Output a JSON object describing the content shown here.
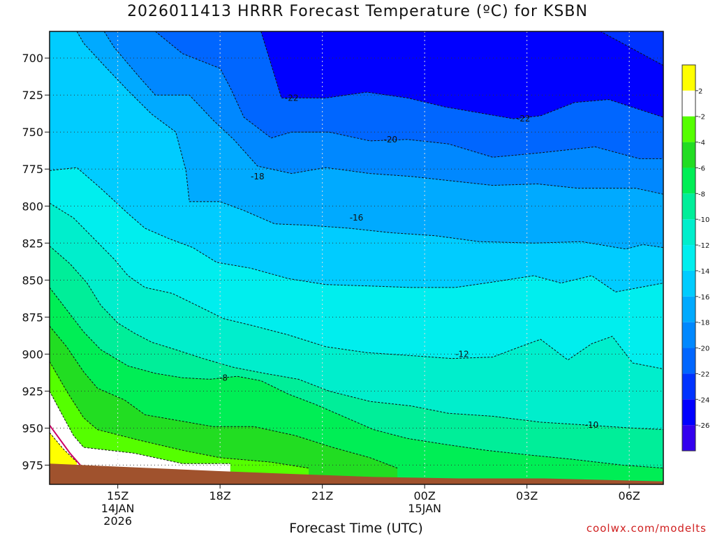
{
  "title": "2026011413 HRRR Forecast Temperature (ºC) for KSBN",
  "credit": "coolwx.com/modelts",
  "chart_data": {
    "type": "contour",
    "title": "2026011413 HRRR Forecast Temperature (ºC) for KSBN",
    "xlabel": "Forecast Time (UTC)",
    "ylabel": "",
    "x_ticks": [
      {
        "hour": 15,
        "label": [
          "15Z",
          "14JAN",
          "2026"
        ]
      },
      {
        "hour": 18,
        "label": [
          "18Z"
        ]
      },
      {
        "hour": 21,
        "label": [
          "21Z"
        ]
      },
      {
        "hour": 24,
        "label": [
          "00Z",
          "15JAN"
        ]
      },
      {
        "hour": 27,
        "label": [
          "03Z"
        ]
      },
      {
        "hour": 30,
        "label": [
          "06Z"
        ]
      }
    ],
    "xlim": [
      13,
      31
    ],
    "y_ticks": [
      700,
      725,
      750,
      775,
      800,
      825,
      850,
      875,
      900,
      925,
      950,
      975
    ],
    "ylim": [
      988,
      682
    ],
    "grid": true,
    "colorbar_levels": [
      2,
      -2,
      -4,
      -6,
      -8,
      -10,
      -12,
      -14,
      -16,
      -18,
      -20,
      -22,
      -24,
      -26
    ],
    "colorbar_colors": [
      "#ffff00",
      "#ffffff",
      "#55ff00",
      "#22dd22",
      "#00ee55",
      "#00ee99",
      "#00eecc",
      "#00eeee",
      "#00ccff",
      "#00aaff",
      "#0088ff",
      "#0066ff",
      "#0033ff",
      "#0000ff",
      "#3300ee"
    ],
    "contour_labels": [
      {
        "value": "-22",
        "hour": 20.1,
        "pres": 727
      },
      {
        "value": "-22",
        "hour": 26.9,
        "pres": 741
      },
      {
        "value": "-20",
        "hour": 23.0,
        "pres": 755
      },
      {
        "value": "-18",
        "hour": 19.1,
        "pres": 780
      },
      {
        "value": "-16",
        "hour": 22.0,
        "pres": 808
      },
      {
        "value": "-12",
        "hour": 25.1,
        "pres": 900
      },
      {
        "value": "-8",
        "hour": 18.1,
        "pres": 916
      },
      {
        "value": "-10",
        "hour": 28.9,
        "pres": 948
      }
    ],
    "isotherms": [
      {
        "level": -24,
        "points": [
          [
            13.3,
            682
          ],
          [
            29.0,
            680
          ],
          [
            31,
            705
          ],
          [
            31,
            682
          ]
        ]
      },
      {
        "level": -22,
        "points": [
          [
            19.2,
            682
          ],
          [
            19.8,
            727
          ],
          [
            21.1,
            727
          ],
          [
            22.3,
            723
          ],
          [
            23.5,
            727
          ],
          [
            24.6,
            733
          ],
          [
            26.6,
            741
          ],
          [
            27.4,
            739
          ],
          [
            28.4,
            730
          ],
          [
            29.4,
            728
          ],
          [
            31,
            740
          ]
        ]
      },
      {
        "level": -20,
        "points": [
          [
            16.1,
            682
          ],
          [
            16.9,
            697
          ],
          [
            18.0,
            707
          ],
          [
            18.3,
            720
          ],
          [
            18.7,
            740
          ],
          [
            19.5,
            754
          ],
          [
            20.1,
            750
          ],
          [
            21.2,
            750
          ],
          [
            22.4,
            756
          ],
          [
            23.5,
            755
          ],
          [
            24.7,
            758
          ],
          [
            26.0,
            767
          ],
          [
            27.4,
            764
          ],
          [
            29.0,
            760
          ],
          [
            30.3,
            768
          ],
          [
            31,
            768
          ]
        ]
      },
      {
        "level": -18,
        "points": [
          [
            14.6,
            682
          ],
          [
            14.9,
            693
          ],
          [
            15.6,
            712
          ],
          [
            16.1,
            725
          ],
          [
            17.1,
            725
          ],
          [
            17.8,
            742
          ],
          [
            18.4,
            755
          ],
          [
            19.1,
            773
          ],
          [
            20.1,
            778
          ],
          [
            21.1,
            774
          ],
          [
            22.4,
            778
          ],
          [
            23.6,
            780
          ],
          [
            24.8,
            783
          ],
          [
            26.0,
            786
          ],
          [
            27.3,
            785
          ],
          [
            28.5,
            788
          ],
          [
            30.2,
            788
          ],
          [
            31,
            792
          ]
        ]
      },
      {
        "level": -16,
        "points": [
          [
            13.8,
            682
          ],
          [
            14.0,
            690
          ],
          [
            14.6,
            705
          ],
          [
            15.3,
            722
          ],
          [
            16.0,
            738
          ],
          [
            16.7,
            750
          ],
          [
            17.0,
            776
          ],
          [
            17.1,
            797
          ],
          [
            18.0,
            797
          ],
          [
            18.7,
            803
          ],
          [
            19.6,
            812
          ],
          [
            20.6,
            813
          ],
          [
            21.8,
            815
          ],
          [
            23.0,
            818
          ],
          [
            24.3,
            820
          ],
          [
            25.6,
            824
          ],
          [
            27.2,
            825
          ],
          [
            28.6,
            824
          ],
          [
            29.9,
            829
          ],
          [
            30.4,
            826
          ],
          [
            31,
            828
          ]
        ]
      },
      {
        "level": -14,
        "points": [
          [
            13,
            776
          ],
          [
            13.8,
            774
          ],
          [
            14.5,
            788
          ],
          [
            15.3,
            805
          ],
          [
            15.8,
            815
          ],
          [
            16.5,
            822
          ],
          [
            17.2,
            828
          ],
          [
            17.9,
            838
          ],
          [
            18.9,
            842
          ],
          [
            20.0,
            849
          ],
          [
            21.1,
            853
          ],
          [
            22.4,
            854
          ],
          [
            23.6,
            855
          ],
          [
            24.9,
            855
          ],
          [
            26.1,
            851
          ],
          [
            27.2,
            847
          ],
          [
            28.0,
            852
          ],
          [
            28.9,
            847
          ],
          [
            29.6,
            858
          ],
          [
            31,
            852
          ]
        ]
      },
      {
        "level": -12,
        "points": [
          [
            13,
            798
          ],
          [
            13.7,
            808
          ],
          [
            14.3,
            822
          ],
          [
            14.9,
            836
          ],
          [
            15.3,
            847
          ],
          [
            15.8,
            855
          ],
          [
            16.6,
            859
          ],
          [
            17.4,
            868
          ],
          [
            18.1,
            876
          ],
          [
            19.0,
            881
          ],
          [
            20.0,
            887
          ],
          [
            21.1,
            895
          ],
          [
            22.3,
            899
          ],
          [
            23.6,
            901
          ],
          [
            24.8,
            903
          ],
          [
            26.0,
            902
          ],
          [
            26.8,
            895
          ],
          [
            27.4,
            890
          ],
          [
            28.2,
            904
          ],
          [
            28.9,
            893
          ],
          [
            29.5,
            888
          ],
          [
            30.1,
            906
          ],
          [
            31,
            910
          ]
        ]
      },
      {
        "level": -10,
        "points": [
          [
            13,
            827
          ],
          [
            13.6,
            839
          ],
          [
            14.1,
            852
          ],
          [
            14.5,
            867
          ],
          [
            15.0,
            879
          ],
          [
            15.5,
            886
          ],
          [
            16.0,
            892
          ],
          [
            16.7,
            897
          ],
          [
            17.5,
            903
          ],
          [
            18.4,
            909
          ],
          [
            19.3,
            913
          ],
          [
            20.3,
            917
          ],
          [
            21.2,
            925
          ],
          [
            22.4,
            932
          ],
          [
            23.6,
            935
          ],
          [
            24.7,
            940
          ],
          [
            26.0,
            942
          ],
          [
            27.4,
            946
          ],
          [
            28.8,
            948
          ],
          [
            30.1,
            950
          ],
          [
            31,
            951
          ]
        ]
      },
      {
        "level": -8,
        "points": [
          [
            13,
            855
          ],
          [
            13.5,
            870
          ],
          [
            14.0,
            885
          ],
          [
            14.5,
            897
          ],
          [
            15.3,
            908
          ],
          [
            16.1,
            913
          ],
          [
            16.9,
            916
          ],
          [
            17.7,
            917
          ],
          [
            18.5,
            915
          ],
          [
            19.2,
            918
          ],
          [
            20.0,
            927
          ],
          [
            20.8,
            934
          ],
          [
            21.6,
            942
          ],
          [
            22.5,
            951
          ],
          [
            23.5,
            957
          ],
          [
            24.6,
            961
          ],
          [
            25.8,
            965
          ],
          [
            27.0,
            968
          ],
          [
            28.3,
            971
          ],
          [
            29.8,
            975
          ],
          [
            31,
            977
          ]
        ]
      },
      {
        "level": -6,
        "points": [
          [
            13,
            881
          ],
          [
            13.5,
            895
          ],
          [
            14.0,
            912
          ],
          [
            14.4,
            923
          ],
          [
            15.2,
            931
          ],
          [
            15.8,
            941
          ],
          [
            16.8,
            945
          ],
          [
            17.8,
            949
          ],
          [
            19.0,
            949
          ],
          [
            20.2,
            955
          ],
          [
            21.3,
            963
          ],
          [
            22.4,
            970
          ],
          [
            23.2,
            977
          ]
        ]
      },
      {
        "level": -4,
        "points": [
          [
            13,
            905
          ],
          [
            13.5,
            925
          ],
          [
            14.0,
            943
          ],
          [
            14.4,
            951
          ],
          [
            15.6,
            958
          ],
          [
            16.9,
            965
          ],
          [
            18.0,
            970
          ],
          [
            19.5,
            973
          ],
          [
            20.6,
            977
          ]
        ]
      },
      {
        "level": -2,
        "points": [
          [
            13,
            925
          ],
          [
            13.3,
            938
          ],
          [
            13.7,
            955
          ],
          [
            14.0,
            963
          ],
          [
            15.5,
            967
          ],
          [
            16.9,
            974
          ],
          [
            18.3,
            974
          ]
        ]
      },
      {
        "level": 0,
        "points": [
          [
            13,
            953
          ],
          [
            13.4,
            964
          ],
          [
            13.8,
            973
          ]
        ]
      }
    ],
    "surface_pressure": [
      [
        13,
        974
      ],
      [
        14.0,
        975
      ],
      [
        16.0,
        977
      ],
      [
        17.9,
        979
      ],
      [
        20.2,
        981
      ],
      [
        22.5,
        983
      ],
      [
        25.0,
        984
      ],
      [
        27.5,
        984
      ],
      [
        31,
        986
      ]
    ]
  }
}
